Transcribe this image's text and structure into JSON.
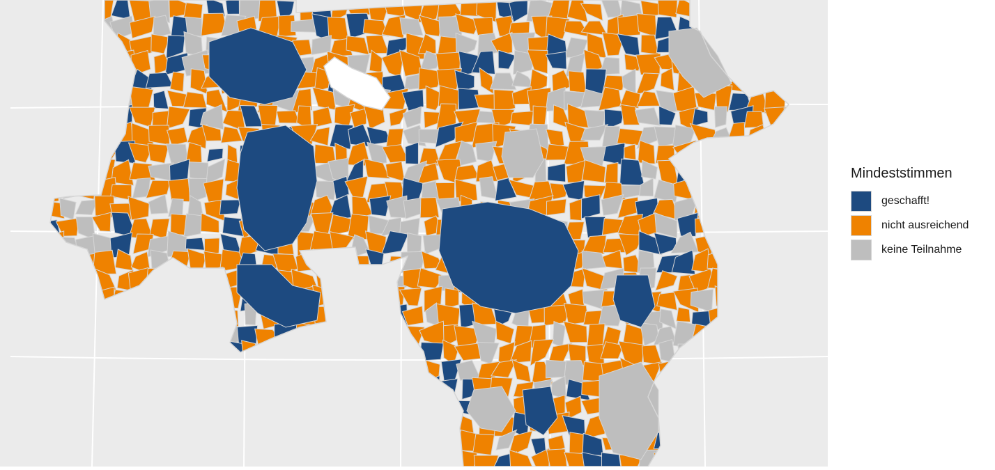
{
  "colors": {
    "panel_background": "#ebebeb",
    "graticule": "#ffffff",
    "region_border": "#d6d6d6",
    "lake": "#ffffff"
  },
  "legend": {
    "title": "Mindeststimmen",
    "items": [
      {
        "key": "geschafft",
        "label": "geschafft!",
        "color": "#1d4a80",
        "share": 0.25
      },
      {
        "key": "nicht_ausreichend",
        "label": "nicht ausreichend",
        "color": "#ef8200",
        "share": 0.55
      },
      {
        "key": "keine_teilnahme",
        "label": "keine Teilnahme",
        "color": "#bebebe",
        "share": 0.2
      }
    ]
  }
}
